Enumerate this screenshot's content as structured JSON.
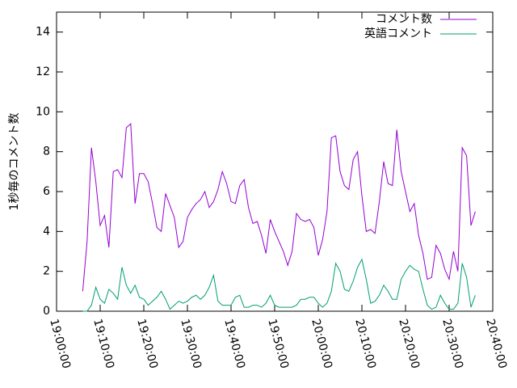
{
  "chart_data": {
    "type": "line",
    "y_label": "1秒毎のコメント数",
    "xlim": [
      68400,
      74400
    ],
    "xticks": [
      {
        "value": 68400,
        "label": "19:00:00"
      },
      {
        "value": 69000,
        "label": "19:10:00"
      },
      {
        "value": 69600,
        "label": "19:20:00"
      },
      {
        "value": 70200,
        "label": "19:30:00"
      },
      {
        "value": 70800,
        "label": "19:40:00"
      },
      {
        "value": 71400,
        "label": "19:50:00"
      },
      {
        "value": 72000,
        "label": "20:00:00"
      },
      {
        "value": 72600,
        "label": "20:10:00"
      },
      {
        "value": 73200,
        "label": "20:20:00"
      },
      {
        "value": 73800,
        "label": "20:30:00"
      },
      {
        "value": 74400,
        "label": "20:40:00"
      }
    ],
    "ylim": [
      0,
      15
    ],
    "yticks": [
      0,
      2,
      4,
      6,
      8,
      10,
      12,
      14
    ],
    "legend": "top-right",
    "x": [
      68760,
      68820,
      68880,
      68940,
      69000,
      69060,
      69120,
      69180,
      69240,
      69300,
      69360,
      69420,
      69480,
      69540,
      69600,
      69660,
      69720,
      69780,
      69840,
      69900,
      69960,
      70020,
      70080,
      70140,
      70200,
      70260,
      70320,
      70380,
      70440,
      70500,
      70560,
      70620,
      70680,
      70740,
      70800,
      70860,
      70920,
      70980,
      71040,
      71100,
      71160,
      71220,
      71280,
      71340,
      71400,
      71460,
      71520,
      71580,
      71640,
      71700,
      71760,
      71820,
      71880,
      71940,
      72000,
      72060,
      72120,
      72180,
      72240,
      72300,
      72360,
      72420,
      72480,
      72540,
      72600,
      72660,
      72720,
      72780,
      72840,
      72900,
      72960,
      73020,
      73080,
      73140,
      73200,
      73260,
      73320,
      73380,
      73440,
      73500,
      73560,
      73620,
      73680,
      73740,
      73800,
      73860,
      73920,
      73980,
      74040,
      74100,
      74160
    ],
    "series": [
      {
        "name": "コメント数",
        "color": "#9400d3",
        "values": [
          1.0,
          3.5,
          8.2,
          6.5,
          4.3,
          4.8,
          3.2,
          7.0,
          7.1,
          6.7,
          9.2,
          9.4,
          5.4,
          6.9,
          6.9,
          6.5,
          5.4,
          4.2,
          4.0,
          5.9,
          5.3,
          4.7,
          3.2,
          3.5,
          4.7,
          5.1,
          5.4,
          5.6,
          6.0,
          5.2,
          5.5,
          6.1,
          7.0,
          6.4,
          5.5,
          5.4,
          6.3,
          6.6,
          5.2,
          4.4,
          4.5,
          3.8,
          2.9,
          4.6,
          4.0,
          3.5,
          3.0,
          2.3,
          3.0,
          4.9,
          4.6,
          4.5,
          4.6,
          4.2,
          2.8,
          3.6,
          5.0,
          8.7,
          8.8,
          7.0,
          6.3,
          6.1,
          7.6,
          8.0,
          5.8,
          4.0,
          4.1,
          3.9,
          5.5,
          7.5,
          6.4,
          6.3,
          9.1,
          7.0,
          6.0,
          5.0,
          5.4,
          3.8,
          2.9,
          1.6,
          1.7,
          3.3,
          2.9,
          2.1,
          1.6,
          3.0,
          2.0,
          8.2,
          7.8,
          4.3,
          5.0
        ]
      },
      {
        "name": "英語コメント",
        "color": "#009e73",
        "values": [
          0,
          0,
          0.3,
          1.2,
          0.6,
          0.4,
          1.1,
          0.9,
          0.6,
          2.2,
          1.3,
          0.9,
          1.3,
          0.7,
          0.6,
          0.3,
          0.5,
          0.7,
          1.0,
          0.6,
          0.1,
          0.3,
          0.5,
          0.4,
          0.5,
          0.7,
          0.8,
          0.6,
          0.8,
          1.2,
          1.8,
          0.5,
          0.3,
          0.3,
          0.3,
          0.7,
          0.8,
          0.2,
          0.2,
          0.3,
          0.3,
          0.2,
          0.4,
          0.8,
          0.3,
          0.2,
          0.2,
          0.2,
          0.2,
          0.3,
          0.6,
          0.6,
          0.7,
          0.7,
          0.4,
          0.2,
          0.4,
          1.0,
          2.4,
          2.0,
          1.1,
          1.0,
          1.5,
          2.2,
          2.6,
          1.6,
          0.4,
          0.5,
          0.8,
          1.3,
          1.0,
          0.6,
          0.6,
          1.6,
          2.0,
          2.3,
          2.1,
          2.0,
          1.1,
          0.3,
          0.1,
          0.2,
          0.8,
          0.4,
          0.1,
          0.1,
          0.4,
          2.4,
          1.7,
          0.2,
          0.8
        ]
      }
    ]
  }
}
